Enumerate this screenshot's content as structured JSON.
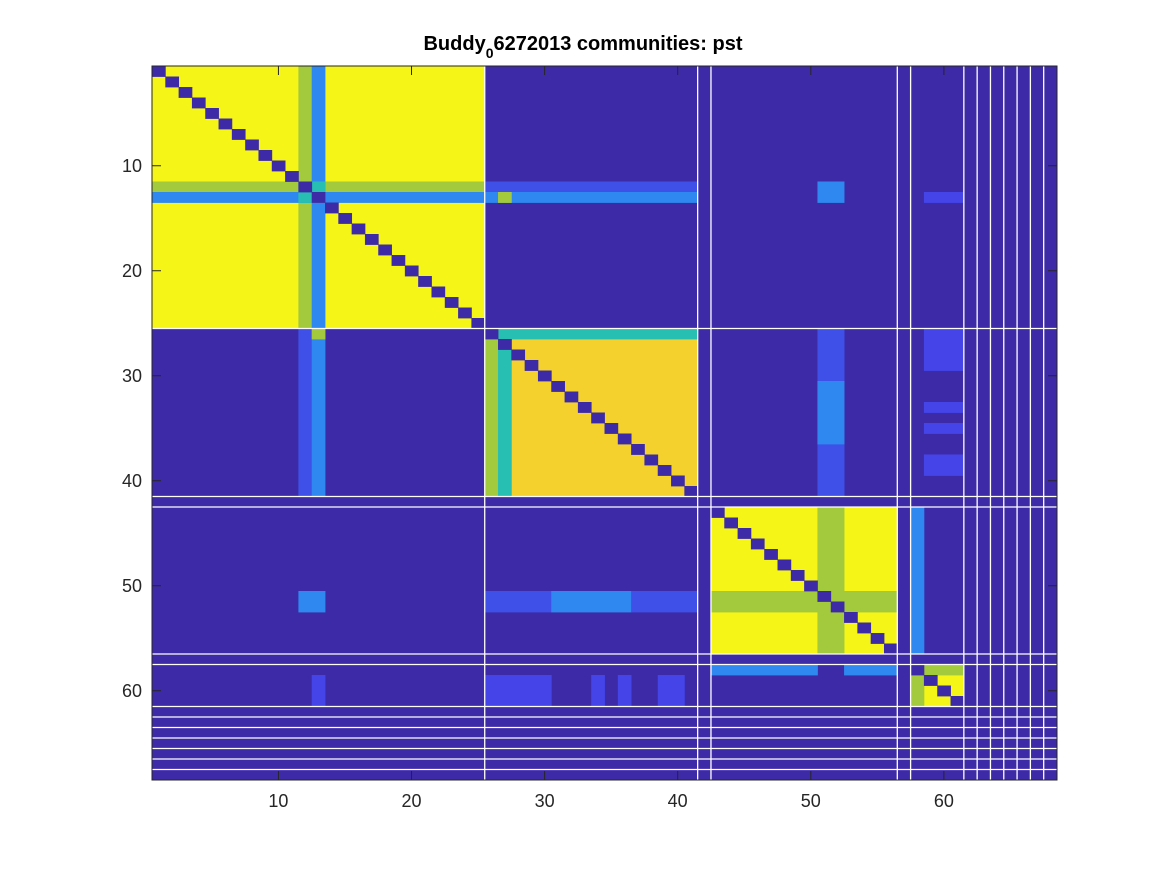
{
  "chart_data": {
    "type": "heatmap",
    "title": "Buddy",
    "title_subscript": "0",
    "title_rest": "6272013 communities: pst",
    "xlabel": "",
    "ylabel": "",
    "n": 68,
    "xlim": [
      0.5,
      68.5
    ],
    "ylim": [
      0.5,
      68.5
    ],
    "y_direction": "reverse",
    "xticks": [
      10,
      20,
      30,
      40,
      50,
      60
    ],
    "yticks": [
      10,
      20,
      30,
      40,
      50,
      60
    ],
    "colormap": "parula",
    "colors": {
      "background": "#3d2aa7",
      "yellow": "#f6f518",
      "gold": "#f5d12d",
      "olive": "#a3c93d",
      "teal": "#26bfb2",
      "azure": "#2f88ef",
      "skyblue": "#2e99e6",
      "blue": "#3e50e8",
      "indigo": "#4544e8",
      "separator": "#ffffff"
    },
    "blocks": [
      {
        "rows": [
          1,
          25
        ],
        "cols": [
          1,
          25
        ],
        "level": "yellow"
      },
      {
        "rows": [
          26,
          41
        ],
        "cols": [
          26,
          41
        ],
        "level": "yellow"
      },
      {
        "rows": [
          43,
          56
        ],
        "cols": [
          43,
          56
        ],
        "level": "yellow"
      },
      {
        "rows": [
          59,
          61
        ],
        "cols": [
          59,
          61
        ],
        "level": "yellow"
      }
    ],
    "rects": [
      {
        "rows": [
          26,
          41
        ],
        "cols": [
          26,
          41
        ],
        "level": "gold"
      },
      {
        "rows": [
          27,
          27
        ],
        "cols": [
          27,
          27
        ],
        "level": "teal"
      },
      {
        "rows": [
          26,
          26
        ],
        "cols": [
          26,
          41
        ],
        "level": "teal"
      },
      {
        "rows": [
          26,
          41
        ],
        "cols": [
          26,
          26
        ],
        "level": "olive"
      },
      {
        "rows": [
          27,
          41
        ],
        "cols": [
          27,
          27
        ],
        "level": "teal"
      },
      {
        "rows": [
          1,
          25
        ],
        "cols": [
          12,
          12
        ],
        "level": "olive"
      },
      {
        "rows": [
          12,
          12
        ],
        "cols": [
          1,
          25
        ],
        "level": "olive"
      },
      {
        "rows": [
          1,
          25
        ],
        "cols": [
          13,
          13
        ],
        "level": "azure"
      },
      {
        "rows": [
          13,
          13
        ],
        "cols": [
          1,
          25
        ],
        "level": "azure"
      },
      {
        "rows": [
          12,
          13
        ],
        "cols": [
          12,
          13
        ],
        "level": "teal"
      },
      {
        "rows": [
          43,
          56
        ],
        "cols": [
          51,
          52
        ],
        "level": "olive"
      },
      {
        "rows": [
          51,
          52
        ],
        "cols": [
          43,
          56
        ],
        "level": "olive"
      },
      {
        "rows": [
          59,
          61
        ],
        "cols": [
          58,
          58
        ],
        "level": "olive"
      },
      {
        "rows": [
          58,
          58
        ],
        "cols": [
          58,
          61
        ],
        "level": "olive"
      },
      {
        "rows": [
          12,
          12
        ],
        "cols": [
          26,
          41
        ],
        "level": "blue"
      },
      {
        "rows": [
          13,
          13
        ],
        "cols": [
          26,
          41
        ],
        "level": "azure"
      },
      {
        "rows": [
          13,
          13
        ],
        "cols": [
          27,
          27
        ],
        "level": "olive"
      },
      {
        "rows": [
          12,
          13
        ],
        "cols": [
          51,
          52
        ],
        "level": "azure"
      },
      {
        "rows": [
          13,
          13
        ],
        "cols": [
          59,
          61
        ],
        "level": "indigo"
      },
      {
        "rows": [
          26,
          41
        ],
        "cols": [
          12,
          12
        ],
        "level": "blue"
      },
      {
        "rows": [
          26,
          41
        ],
        "cols": [
          13,
          13
        ],
        "level": "azure"
      },
      {
        "rows": [
          26,
          26
        ],
        "cols": [
          13,
          13
        ],
        "level": "olive"
      },
      {
        "rows": [
          26,
          41
        ],
        "cols": [
          51,
          52
        ],
        "level": "blue"
      },
      {
        "rows": [
          31,
          36
        ],
        "cols": [
          51,
          52
        ],
        "level": "azure"
      },
      {
        "rows": [
          26,
          29
        ],
        "cols": [
          59,
          61
        ],
        "level": "indigo"
      },
      {
        "rows": [
          33,
          33
        ],
        "cols": [
          59,
          61
        ],
        "level": "indigo"
      },
      {
        "rows": [
          35,
          35
        ],
        "cols": [
          59,
          61
        ],
        "level": "indigo"
      },
      {
        "rows": [
          38,
          39
        ],
        "cols": [
          59,
          61
        ],
        "level": "indigo"
      },
      {
        "rows": [
          51,
          52
        ],
        "cols": [
          12,
          13
        ],
        "level": "azure"
      },
      {
        "rows": [
          51,
          52
        ],
        "cols": [
          26,
          30
        ],
        "level": "blue"
      },
      {
        "rows": [
          51,
          52
        ],
        "cols": [
          31,
          36
        ],
        "level": "azure"
      },
      {
        "rows": [
          51,
          52
        ],
        "cols": [
          37,
          41
        ],
        "level": "blue"
      },
      {
        "rows": [
          43,
          56
        ],
        "cols": [
          58,
          58
        ],
        "level": "azure"
      },
      {
        "rows": [
          58,
          58
        ],
        "cols": [
          43,
          50
        ],
        "level": "azure"
      },
      {
        "rows": [
          58,
          58
        ],
        "cols": [
          53,
          56
        ],
        "level": "azure"
      },
      {
        "rows": [
          59,
          61
        ],
        "cols": [
          13,
          13
        ],
        "level": "indigo"
      },
      {
        "rows": [
          59,
          61
        ],
        "cols": [
          26,
          30
        ],
        "level": "indigo"
      },
      {
        "rows": [
          59,
          61
        ],
        "cols": [
          34,
          34
        ],
        "level": "indigo"
      },
      {
        "rows": [
          59,
          61
        ],
        "cols": [
          36,
          36
        ],
        "level": "indigo"
      },
      {
        "rows": [
          59,
          61
        ],
        "cols": [
          39,
          40
        ],
        "level": "indigo"
      }
    ],
    "separators": [
      25.5,
      41.5,
      42.5,
      56.5,
      57.5,
      61.5,
      62.5,
      63.5,
      64.5,
      65.5,
      66.5,
      67.5
    ]
  }
}
